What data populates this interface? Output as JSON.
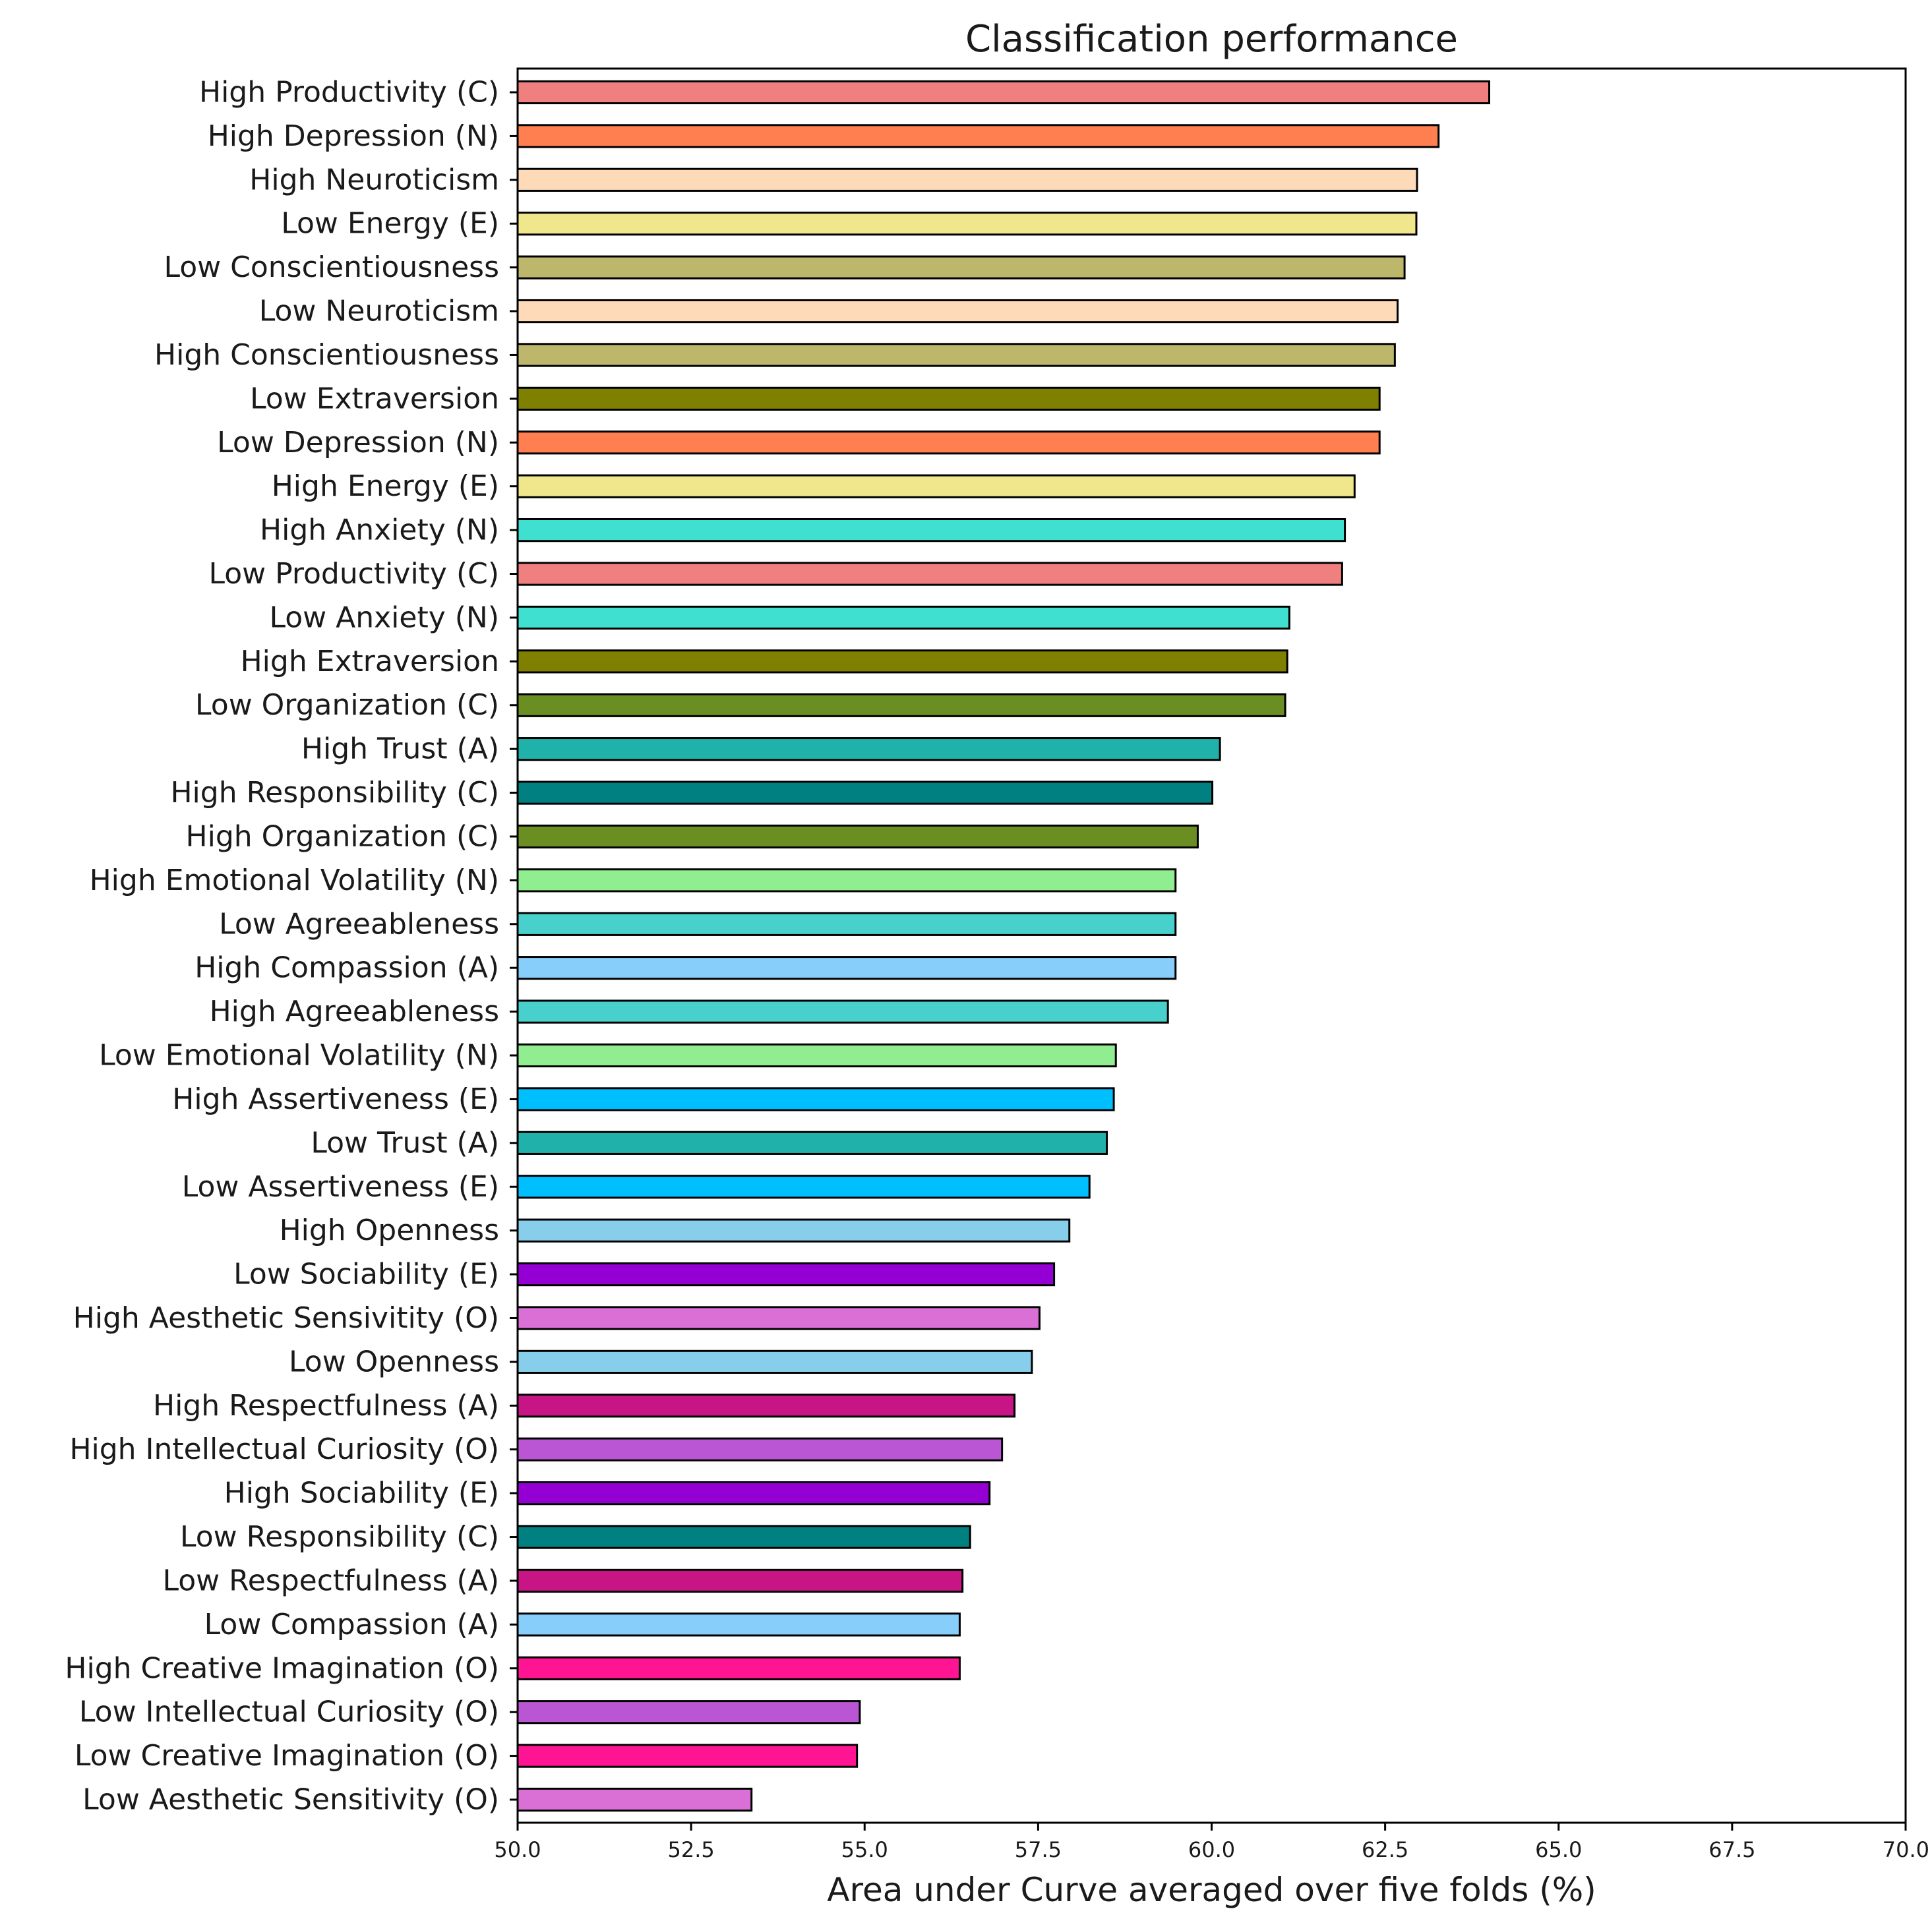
{
  "chart_data": {
    "type": "bar",
    "orientation": "horizontal",
    "title": "Classification performance",
    "xlabel": "Area under Curve averaged over five folds (%)",
    "ylabel": "",
    "xlim": [
      50.0,
      70.0
    ],
    "xticks": [
      "50.0",
      "52.5",
      "55.0",
      "57.5",
      "60.0",
      "62.5",
      "65.0",
      "67.5",
      "70.0"
    ],
    "xtick_values": [
      50.0,
      52.5,
      55.0,
      57.5,
      60.0,
      62.5,
      65.0,
      67.5,
      70.0
    ],
    "grid": false,
    "bars": [
      {
        "label": "High Productivity (C)",
        "value": 64.0,
        "color": "#F08080"
      },
      {
        "label": "High Depression (N)",
        "value": 63.27,
        "color": "#FF7F50"
      },
      {
        "label": "High Neuroticism",
        "value": 62.96,
        "color": "#FFDAB9"
      },
      {
        "label": "Low Energy (E)",
        "value": 62.95,
        "color": "#F0E68C"
      },
      {
        "label": "Low Conscientiousness",
        "value": 62.78,
        "color": "#BDB76B"
      },
      {
        "label": "Low Neuroticism",
        "value": 62.68,
        "color": "#FFDAB9"
      },
      {
        "label": "High Conscientiousness",
        "value": 62.64,
        "color": "#BDB76B"
      },
      {
        "label": "Low Extraversion",
        "value": 62.42,
        "color": "#808000"
      },
      {
        "label": "Low Depression (N)",
        "value": 62.42,
        "color": "#FF7F50"
      },
      {
        "label": "High Energy (E)",
        "value": 62.06,
        "color": "#F0E68C"
      },
      {
        "label": "High Anxiety (N)",
        "value": 61.92,
        "color": "#40E0D0"
      },
      {
        "label": "Low Productivity (C)",
        "value": 61.88,
        "color": "#F08080"
      },
      {
        "label": "Low Anxiety (N)",
        "value": 61.12,
        "color": "#40E0D0"
      },
      {
        "label": "High Extraversion",
        "value": 61.09,
        "color": "#808000"
      },
      {
        "label": "Low Organization (C)",
        "value": 61.06,
        "color": "#6B8E23"
      },
      {
        "label": "High Trust (A)",
        "value": 60.12,
        "color": "#20B2AA"
      },
      {
        "label": "High Responsibility (C)",
        "value": 60.01,
        "color": "#008080"
      },
      {
        "label": "High Organization (C)",
        "value": 59.8,
        "color": "#6B8E23"
      },
      {
        "label": "High Emotional Volatility (N)",
        "value": 59.48,
        "color": "#90EE90"
      },
      {
        "label": "Low Agreeableness",
        "value": 59.48,
        "color": "#48D1CC"
      },
      {
        "label": "High Compassion (A)",
        "value": 59.48,
        "color": "#87CEFA"
      },
      {
        "label": "High Agreeableness",
        "value": 59.37,
        "color": "#48D1CC"
      },
      {
        "label": "Low Emotional Volatility (N)",
        "value": 58.62,
        "color": "#90EE90"
      },
      {
        "label": "High Assertiveness (E)",
        "value": 58.59,
        "color": "#00BFFF"
      },
      {
        "label": "Low Trust (A)",
        "value": 58.49,
        "color": "#20B2AA"
      },
      {
        "label": "Low Assertiveness (E)",
        "value": 58.24,
        "color": "#00BFFF"
      },
      {
        "label": "High Openness",
        "value": 57.95,
        "color": "#87CEEB"
      },
      {
        "label": "Low Sociability (E)",
        "value": 57.73,
        "color": "#9400D3"
      },
      {
        "label": "High Aesthetic Sensivitity (O)",
        "value": 57.52,
        "color": "#DA70D6"
      },
      {
        "label": "Low Openness",
        "value": 57.41,
        "color": "#87CEEB"
      },
      {
        "label": "High Respectfulness (A)",
        "value": 57.16,
        "color": "#C71585"
      },
      {
        "label": "High Intellectual Curiosity (O)",
        "value": 56.98,
        "color": "#BA55D3"
      },
      {
        "label": "High Sociability (E)",
        "value": 56.8,
        "color": "#9400D3"
      },
      {
        "label": "Low Responsibility (C)",
        "value": 56.52,
        "color": "#008080"
      },
      {
        "label": "Low Respectfulness (A)",
        "value": 56.41,
        "color": "#C71585"
      },
      {
        "label": "Low Compassion (A)",
        "value": 56.37,
        "color": "#87CEFA"
      },
      {
        "label": "High Creative Imagination (O)",
        "value": 56.37,
        "color": "#FF1493"
      },
      {
        "label": "Low Intellectual Curiosity (O)",
        "value": 54.93,
        "color": "#BA55D3"
      },
      {
        "label": "Low Creative Imagination (O)",
        "value": 54.89,
        "color": "#FF1493"
      },
      {
        "label": "Low Aesthetic Sensitivity (O)",
        "value": 53.37,
        "color": "#DA70D6"
      }
    ]
  }
}
